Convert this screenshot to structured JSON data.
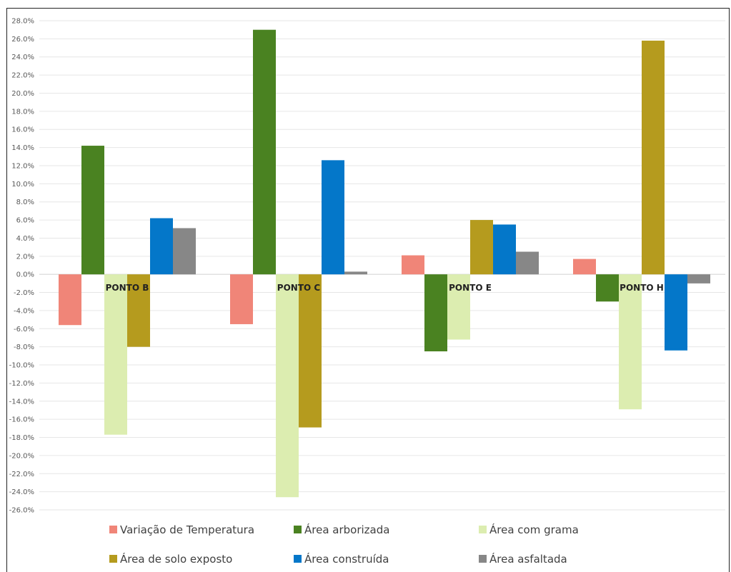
{
  "chart_data": {
    "type": "bar",
    "categories": [
      "PONTO B",
      "PONTO C",
      "PONTO E",
      "PONTO H"
    ],
    "series": [
      {
        "name": "Variação de Temperatura",
        "color": "#f08578",
        "values": [
          -5.6,
          -5.5,
          2.1,
          1.7
        ]
      },
      {
        "name": "Área arborizada",
        "color": "#4a8221",
        "values": [
          14.2,
          27.0,
          -8.5,
          -3.0
        ]
      },
      {
        "name": "Área com grama",
        "color": "#dcedb0",
        "values": [
          -17.7,
          -24.6,
          -7.2,
          -14.9
        ]
      },
      {
        "name": "Área de solo exposto",
        "color": "#b59b1e",
        "values": [
          -8.0,
          -16.9,
          6.0,
          25.8
        ]
      },
      {
        "name": "Área construída",
        "color": "#0477c9",
        "values": [
          6.2,
          12.6,
          5.5,
          -8.4
        ]
      },
      {
        "name": "Área asfaltada",
        "color": "#878787",
        "values": [
          5.1,
          0.3,
          2.5,
          -1.0
        ]
      }
    ],
    "yticks": [
      "28.0%",
      "26.0%",
      "24.0%",
      "22.0%",
      "20.0%",
      "18.0%",
      "16.0%",
      "14.0%",
      "12.0%",
      "10.0%",
      "8.0%",
      "6.0%",
      "4.0%",
      "2.0%",
      "0.0%",
      "-2.0%",
      "-4.0%",
      "-6.0%",
      "-8.0%",
      "-10.0%",
      "-12.0%",
      "-14.0%",
      "-16.0%",
      "-18.0%",
      "-20.0%",
      "-22.0%",
      "-24.0%",
      "-26.0%"
    ],
    "ylim": [
      -26,
      28
    ],
    "grid": true,
    "legend_position": "bottom",
    "title": "",
    "xlabel": "",
    "ylabel": ""
  }
}
